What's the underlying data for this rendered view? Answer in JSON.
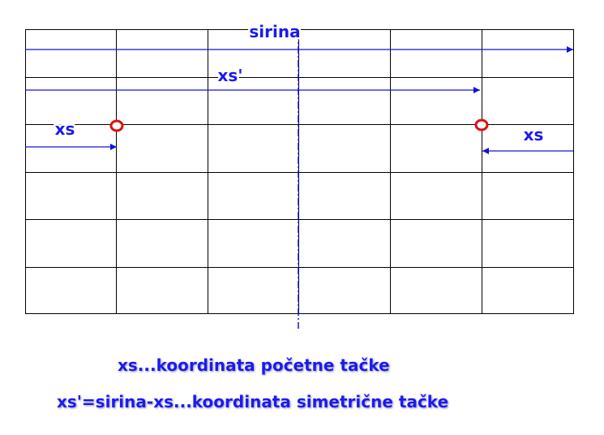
{
  "labels": {
    "width_label": "sirina",
    "mirrored_coord_label": "xs'",
    "start_coord_label_left": "xs",
    "start_coord_label_right": "xs"
  },
  "captions": {
    "start_point_caption": "xs...koordinata početne tačke",
    "symmetric_point_caption": "xs'=sirina-xs...koordinata simetrične tačke"
  },
  "grid": {
    "rows": 6,
    "columns": 6
  },
  "colors": {
    "arrow": "#1010e0",
    "axis": "#1010e0",
    "point_fill": "#ffffff",
    "point_stroke": "#e01010",
    "grid_line": "#000000",
    "label_text": "#1a1af0"
  },
  "icons": {
    "start_point": "red-circle-marker",
    "symmetric_point": "red-circle-marker",
    "arrowheads": "triangle-arrowhead"
  }
}
